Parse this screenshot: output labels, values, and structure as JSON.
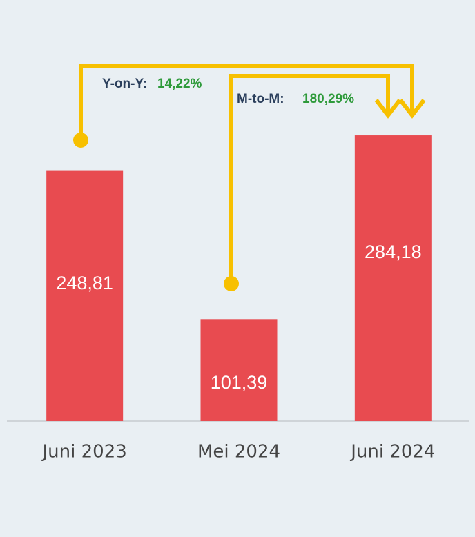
{
  "chart_data": {
    "type": "bar",
    "categories": [
      "Juni 2023",
      "Mei 2024",
      "Juni 2024"
    ],
    "values": [
      248.81,
      101.39,
      284.18
    ],
    "value_labels": [
      "248,81",
      "101,39",
      "284,18"
    ],
    "color": "#e84b50",
    "ylim": [
      0,
      300
    ],
    "annotations": [
      {
        "label": "Y-on-Y:",
        "text": "14,22%"
      },
      {
        "label": "M-to-M:",
        "text": "180,29%"
      }
    ]
  }
}
